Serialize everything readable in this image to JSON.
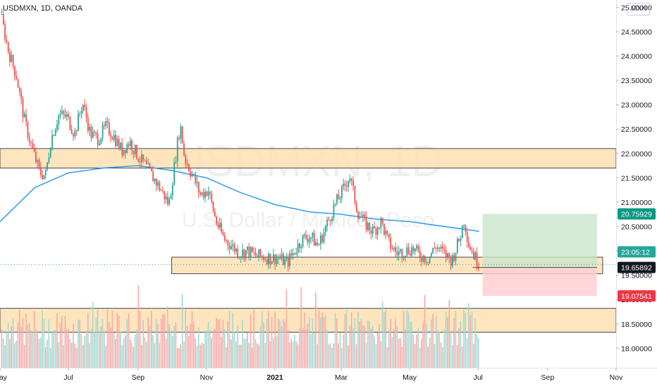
{
  "header": {
    "symbol_line": "USDMXN, 1D, OANDA",
    "currency": "MXN"
  },
  "watermark": {
    "symbol": "USDMXN, 1D",
    "description": "U.S. Dollar / Mexican Peso"
  },
  "colors": {
    "up": "#26a69a",
    "down": "#ef5350",
    "ma_line": "#2196f3",
    "zone_fill": "#ffe0b2",
    "zone_border": "#434651",
    "profit_fill": "#c8e6c9",
    "loss_fill": "#ffcdd2",
    "last_price_bg": "#26a69a",
    "target_bg": "#089981",
    "stop_bg": "#f23645",
    "entry_bg": "#131722",
    "volume_up": "#a5d6d0",
    "volume_down": "#f7a9a7"
  },
  "chart_data": {
    "type": "candlestick",
    "title": "USDMXN, 1D, OANDA",
    "y_axis": {
      "range": [
        17.6,
        25.15
      ],
      "ticks": [
        "25.00000",
        "24.50000",
        "24.00000",
        "23.50000",
        "23.00000",
        "22.50000",
        "22.00000",
        "21.50000",
        "21.00000",
        "20.50000",
        "20.00000",
        "19.50000",
        "19.00000",
        "18.50000",
        "18.00000"
      ]
    },
    "x_axis": {
      "tick_labels": [
        "May",
        "Jul",
        "Sep",
        "Nov",
        "2021",
        "Mar",
        "May",
        "Jul",
        "Sep",
        "Nov"
      ],
      "tick_dates": [
        "2020-05-01",
        "2020-07-01",
        "2020-09-01",
        "2020-11-01",
        "2021-01-01",
        "2021-03-01",
        "2021-05-01",
        "2021-07-01",
        "2021-09-01",
        "2021-11-01"
      ],
      "range": [
        "2020-05-01",
        "2021-11-01"
      ]
    },
    "price_path": [
      [
        "2020-05-01",
        24.85
      ],
      [
        "2020-05-08",
        24.1
      ],
      [
        "2020-05-15",
        23.6
      ],
      [
        "2020-05-22",
        22.7
      ],
      [
        "2020-05-29",
        22.1
      ],
      [
        "2020-06-05",
        21.6
      ],
      [
        "2020-06-10",
        21.55
      ],
      [
        "2020-06-15",
        22.3
      ],
      [
        "2020-06-22",
        22.8
      ],
      [
        "2020-06-29",
        22.75
      ],
      [
        "2020-07-06",
        22.4
      ],
      [
        "2020-07-13",
        23.05
      ],
      [
        "2020-07-20",
        22.4
      ],
      [
        "2020-07-27",
        22.3
      ],
      [
        "2020-08-03",
        22.55
      ],
      [
        "2020-08-10",
        22.35
      ],
      [
        "2020-08-17",
        22.05
      ],
      [
        "2020-08-24",
        22.25
      ],
      [
        "2020-08-31",
        21.95
      ],
      [
        "2020-09-07",
        21.75
      ],
      [
        "2020-09-14",
        21.5
      ],
      [
        "2020-09-21",
        21.25
      ],
      [
        "2020-09-28",
        20.95
      ],
      [
        "2020-10-05",
        22.1
      ],
      [
        "2020-10-08",
        22.6
      ],
      [
        "2020-10-12",
        21.9
      ],
      [
        "2020-10-19",
        21.55
      ],
      [
        "2020-10-26",
        21.15
      ],
      [
        "2020-11-02",
        21.25
      ],
      [
        "2020-11-09",
        20.6
      ],
      [
        "2020-11-16",
        20.25
      ],
      [
        "2020-11-23",
        20.1
      ],
      [
        "2020-11-30",
        19.95
      ],
      [
        "2020-12-07",
        20.0
      ],
      [
        "2020-12-14",
        19.9
      ],
      [
        "2020-12-21",
        19.88
      ],
      [
        "2020-12-28",
        19.85
      ],
      [
        "2021-01-04",
        19.85
      ],
      [
        "2021-01-11",
        19.75
      ],
      [
        "2021-01-18",
        20.0
      ],
      [
        "2021-01-25",
        20.25
      ],
      [
        "2021-02-01",
        20.3
      ],
      [
        "2021-02-08",
        20.1
      ],
      [
        "2021-02-15",
        20.5
      ],
      [
        "2021-02-22",
        20.9
      ],
      [
        "2021-03-01",
        21.2
      ],
      [
        "2021-03-08",
        21.55
      ],
      [
        "2021-03-15",
        20.8
      ],
      [
        "2021-03-22",
        20.55
      ],
      [
        "2021-03-29",
        20.4
      ],
      [
        "2021-04-05",
        20.6
      ],
      [
        "2021-04-12",
        20.15
      ],
      [
        "2021-04-19",
        19.95
      ],
      [
        "2021-04-26",
        20.0
      ],
      [
        "2021-05-03",
        20.05
      ],
      [
        "2021-05-10",
        19.9
      ],
      [
        "2021-05-17",
        19.85
      ],
      [
        "2021-05-24",
        20.1
      ],
      [
        "2021-05-31",
        19.95
      ],
      [
        "2021-06-07",
        19.8
      ],
      [
        "2021-06-14",
        20.25
      ],
      [
        "2021-06-18",
        20.65
      ],
      [
        "2021-06-22",
        20.15
      ],
      [
        "2021-06-28",
        19.85
      ],
      [
        "2021-07-02",
        19.72
      ]
    ],
    "moving_average": [
      [
        "2020-05-01",
        20.6
      ],
      [
        "2020-06-01",
        21.3
      ],
      [
        "2020-07-01",
        21.6
      ],
      [
        "2020-08-01",
        21.7
      ],
      [
        "2020-09-01",
        21.75
      ],
      [
        "2020-10-01",
        21.65
      ],
      [
        "2020-11-01",
        21.5
      ],
      [
        "2020-12-01",
        21.2
      ],
      [
        "2021-01-01",
        20.95
      ],
      [
        "2021-02-01",
        20.8
      ],
      [
        "2021-03-01",
        20.75
      ],
      [
        "2021-04-01",
        20.65
      ],
      [
        "2021-05-01",
        20.6
      ],
      [
        "2021-06-01",
        20.5
      ],
      [
        "2021-07-02",
        20.4
      ]
    ],
    "zones": [
      {
        "from": "2020-05-01",
        "to": "2021-11-10",
        "top": 22.1,
        "bottom": 21.7
      },
      {
        "from": "2020-10-01",
        "to": "2021-10-20",
        "top": 19.87,
        "bottom": 19.53
      },
      {
        "from": "2020-05-01",
        "to": "2021-11-10",
        "top": 18.82,
        "bottom": 18.33
      }
    ],
    "position": {
      "start": "2021-07-05",
      "end": "2021-10-15",
      "entry": 19.65892,
      "target": 20.75929,
      "stop": 19.07541
    },
    "price_labels": {
      "target": "20.75929",
      "last": "23:05:12",
      "entry": "19.65892",
      "stop": "19.07541"
    }
  }
}
